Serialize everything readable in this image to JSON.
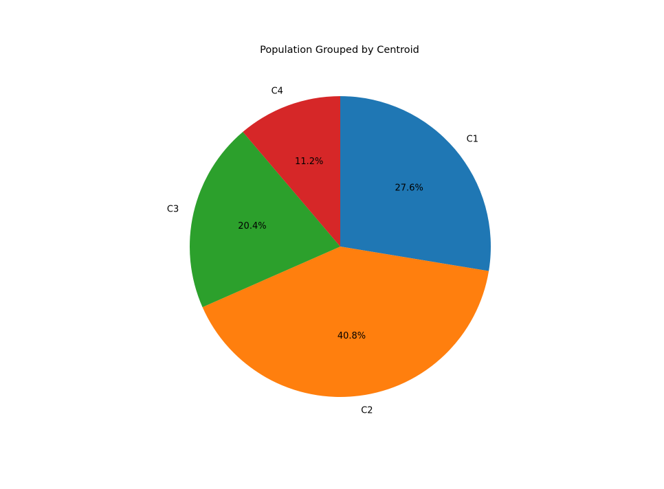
{
  "chart_data": {
    "type": "pie",
    "title": "Population Grouped by Centroid",
    "start_angle_deg": 90,
    "direction": "clockwise",
    "legend": "none",
    "slices": [
      {
        "label": "C1",
        "value": 27.6,
        "pct_label": "27.6%",
        "color": "#1f77b4"
      },
      {
        "label": "C2",
        "value": 40.8,
        "pct_label": "40.8%",
        "color": "#ff7f0e"
      },
      {
        "label": "C3",
        "value": 20.4,
        "pct_label": "20.4%",
        "color": "#2ca02c"
      },
      {
        "label": "C4",
        "value": 11.2,
        "pct_label": "11.2%",
        "color": "#d62728"
      }
    ]
  }
}
